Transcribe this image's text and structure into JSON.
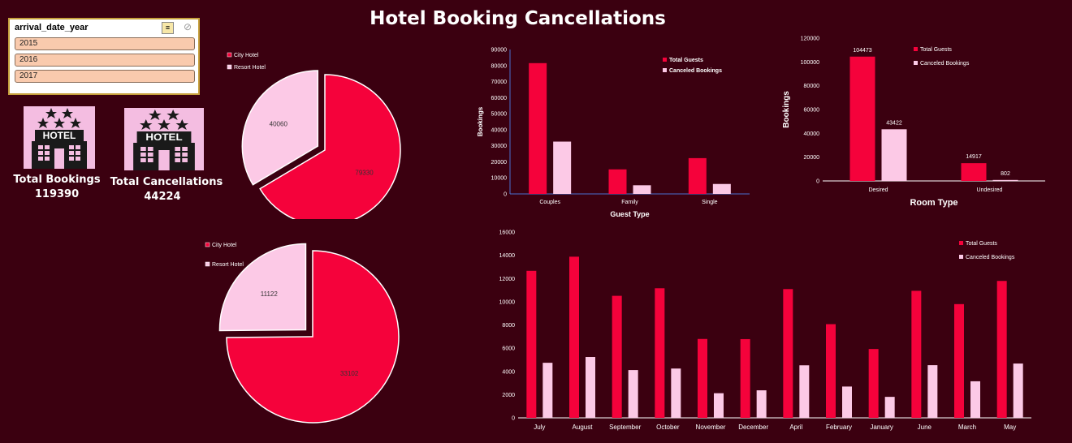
{
  "title": "Hotel Booking Cancellations",
  "slicer": {
    "header": "arrival_date_year",
    "items": [
      "2015",
      "2016",
      "2017"
    ]
  },
  "kpis": {
    "bookings_label": "Total  Bookings",
    "bookings_value": "119390",
    "cancellations_label": "Total  Cancellations",
    "cancellations_value": "44224",
    "icon_text": "HOTEL"
  },
  "colors": {
    "primary": "#f5023b",
    "secondary": "#fcc9e6",
    "background": "#3b0010"
  },
  "chart_data": [
    {
      "type": "pie",
      "title": "",
      "legend": [
        "City Hotel",
        "Resort Hotel"
      ],
      "values": [
        79330,
        40060
      ],
      "labels": [
        "79330",
        "40060"
      ]
    },
    {
      "type": "pie",
      "title": "",
      "legend": [
        "City Hotel",
        "Resort Hotel"
      ],
      "values": [
        33102,
        11122
      ],
      "labels": [
        "33102",
        "11122"
      ]
    },
    {
      "type": "bar",
      "xlabel": "Guest Type",
      "ylabel": "Bookings",
      "categories": [
        "Couples",
        "Family",
        "Single"
      ],
      "series": [
        {
          "name": "Total Guests",
          "values": [
            81500,
            15300,
            22300
          ]
        },
        {
          "name": "Canceled Bookings",
          "values": [
            32600,
            5400,
            6200
          ]
        }
      ],
      "ylim": [
        0,
        90000
      ],
      "yticks": [
        "0",
        "10000",
        "20000",
        "30000",
        "40000",
        "50000",
        "60000",
        "70000",
        "80000",
        "90000"
      ],
      "legend_position": "top-right"
    },
    {
      "type": "bar",
      "xlabel": "Room Type",
      "ylabel": "Bookings",
      "categories": [
        "Desired",
        "Undesired"
      ],
      "series": [
        {
          "name": "Total Guests",
          "values": [
            104473,
            14917
          ],
          "labels": [
            "104473",
            "14917"
          ]
        },
        {
          "name": "Canceled Bookings",
          "values": [
            43422,
            802
          ],
          "labels": [
            "43422",
            "802"
          ]
        }
      ],
      "ylim": [
        0,
        120000
      ],
      "yticks": [
        "0",
        "20000",
        "40000",
        "60000",
        "80000",
        "100000",
        "120000"
      ],
      "legend_position": "top-right"
    },
    {
      "type": "bar",
      "xlabel": "",
      "ylabel": "",
      "categories": [
        "July",
        "August",
        "September",
        "October",
        "November",
        "December",
        "April",
        "February",
        "January",
        "June",
        "March",
        "May"
      ],
      "series": [
        {
          "name": "Total Guests",
          "values": [
            12661,
            13877,
            10508,
            11160,
            6794,
            6780,
            11089,
            8068,
            5929,
            10939,
            9794,
            11791
          ]
        },
        {
          "name": "Canceled Bookings",
          "values": [
            4742,
            5239,
            4116,
            4246,
            2122,
            2371,
            4524,
            2696,
            1807,
            4535,
            3149,
            4677
          ]
        }
      ],
      "ylim": [
        0,
        16000
      ],
      "yticks": [
        "0",
        "2000",
        "4000",
        "6000",
        "8000",
        "10000",
        "12000",
        "14000",
        "16000"
      ],
      "legend_position": "top-right"
    }
  ]
}
